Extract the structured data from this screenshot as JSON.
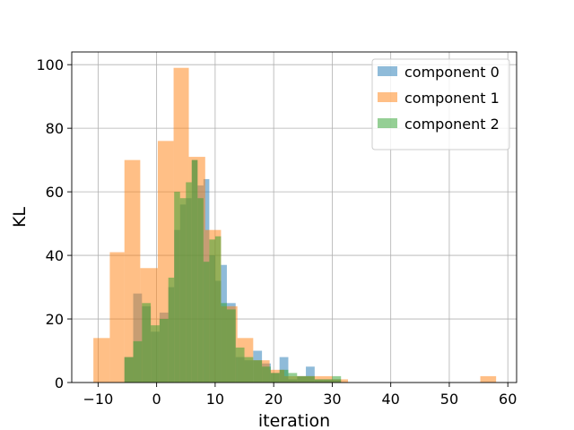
{
  "chart_data": {
    "type": "histogram",
    "xlabel": "iteration",
    "ylabel": "KL",
    "xlim": [
      -14.5,
      61.5
    ],
    "ylim": [
      0,
      104
    ],
    "xticks": [
      -10,
      0,
      10,
      20,
      30,
      40,
      50,
      60
    ],
    "yticks": [
      0,
      20,
      40,
      60,
      80,
      100
    ],
    "grid": true,
    "legend_position": "top-right",
    "series": [
      {
        "name": "component 0",
        "color": "#1f77b4",
        "bins": [
          [
            -5.5,
            -4.0,
            8
          ],
          [
            -4.0,
            -2.5,
            28
          ],
          [
            -2.5,
            -1.0,
            24
          ],
          [
            -1.0,
            0.5,
            16
          ],
          [
            0.5,
            2.0,
            22
          ],
          [
            2.0,
            3.0,
            30
          ],
          [
            3.0,
            4.0,
            48
          ],
          [
            4.0,
            5.0,
            56
          ],
          [
            5.0,
            6.0,
            58
          ],
          [
            6.0,
            7.0,
            70
          ],
          [
            7.0,
            8.0,
            62
          ],
          [
            8.0,
            9.0,
            64
          ],
          [
            9.0,
            10.0,
            40
          ],
          [
            10.0,
            11.0,
            32
          ],
          [
            11.0,
            12.0,
            37
          ],
          [
            12.0,
            13.5,
            25
          ],
          [
            13.5,
            15.0,
            8
          ],
          [
            15.0,
            16.5,
            7
          ],
          [
            16.5,
            18.0,
            10
          ],
          [
            18.0,
            19.5,
            6
          ],
          [
            19.5,
            21.0,
            3
          ],
          [
            21.0,
            22.5,
            8
          ],
          [
            22.5,
            24.0,
            1
          ],
          [
            24.0,
            25.5,
            2
          ],
          [
            25.5,
            27.0,
            5
          ],
          [
            27.0,
            28.5,
            1
          ],
          [
            28.5,
            30.0,
            1
          ],
          [
            30.0,
            31.5,
            1
          ]
        ]
      },
      {
        "name": "component 1",
        "color": "#ff7f0e",
        "bins": [
          [
            -10.8,
            -8.0,
            14
          ],
          [
            -8.0,
            -5.5,
            41
          ],
          [
            -5.5,
            -2.8,
            70
          ],
          [
            -2.8,
            0.2,
            36
          ],
          [
            0.2,
            2.9,
            76
          ],
          [
            2.9,
            5.5,
            99
          ],
          [
            5.5,
            8.3,
            71
          ],
          [
            8.3,
            11.0,
            48
          ],
          [
            11.0,
            13.8,
            24
          ],
          [
            13.8,
            16.5,
            14
          ],
          [
            16.5,
            19.3,
            7
          ],
          [
            19.3,
            21.8,
            4
          ],
          [
            21.8,
            24.5,
            2
          ],
          [
            24.5,
            27.2,
            2
          ],
          [
            27.2,
            30.0,
            2
          ],
          [
            30.0,
            32.7,
            1
          ],
          [
            55.3,
            58.0,
            2
          ]
        ]
      },
      {
        "name": "component 2",
        "color": "#2ca02c",
        "bins": [
          [
            -5.5,
            -4.0,
            8
          ],
          [
            -4.0,
            -2.5,
            13
          ],
          [
            -2.5,
            -1.0,
            25
          ],
          [
            -1.0,
            0.5,
            18
          ],
          [
            0.5,
            2.0,
            20
          ],
          [
            2.0,
            3.0,
            33
          ],
          [
            3.0,
            4.0,
            60
          ],
          [
            4.0,
            5.0,
            58
          ],
          [
            5.0,
            6.0,
            63
          ],
          [
            6.0,
            7.0,
            70
          ],
          [
            7.0,
            8.0,
            58
          ],
          [
            8.0,
            9.0,
            38
          ],
          [
            9.0,
            10.0,
            45
          ],
          [
            10.0,
            11.0,
            46
          ],
          [
            11.0,
            12.0,
            25
          ],
          [
            12.0,
            13.5,
            23
          ],
          [
            13.5,
            15.0,
            11
          ],
          [
            15.0,
            16.5,
            8
          ],
          [
            16.5,
            18.0,
            7
          ],
          [
            18.0,
            19.5,
            5
          ],
          [
            19.5,
            21.0,
            3
          ],
          [
            21.0,
            22.5,
            4
          ],
          [
            22.5,
            24.0,
            3
          ],
          [
            24.0,
            25.5,
            2
          ],
          [
            25.5,
            27.0,
            2
          ],
          [
            27.0,
            28.5,
            1
          ],
          [
            28.5,
            30.0,
            1
          ],
          [
            30.0,
            31.5,
            2
          ]
        ]
      }
    ]
  }
}
